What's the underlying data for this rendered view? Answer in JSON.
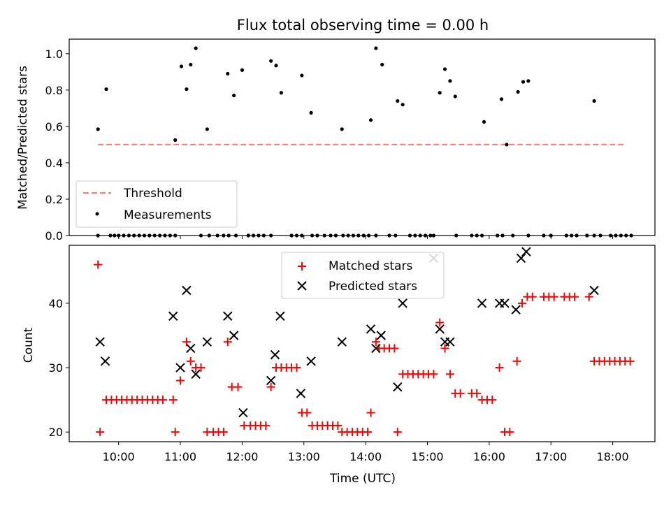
{
  "chart_data": [
    {
      "type": "scatter",
      "title": "Flux total observing time = 0.00 h",
      "xlabel": "",
      "ylabel": "Matched/Predicted stars",
      "ylim": [
        0.0,
        1.08
      ],
      "yticks": [
        "0.0",
        "0.2",
        "0.4",
        "0.6",
        "0.8",
        "1.0"
      ],
      "legend": {
        "placement": "lower-left",
        "entries": [
          "Threshold",
          "Measurements"
        ]
      },
      "series": [
        {
          "name": "Threshold",
          "style": "dashed-line",
          "color": "#ff7777",
          "x": [
            "09:40",
            "18:13"
          ],
          "values": [
            0.5,
            0.5
          ]
        },
        {
          "name": "Measurements",
          "style": "dots",
          "color": "#000000",
          "points": [
            [
              "09:40",
              0.585
            ],
            [
              "09:48",
              0.805
            ],
            [
              "10:55",
              0.525
            ],
            [
              "11:01",
              0.93
            ],
            [
              "11:06",
              0.805
            ],
            [
              "11:10",
              0.94
            ],
            [
              "11:15",
              1.03
            ],
            [
              "11:26",
              0.585
            ],
            [
              "11:46",
              0.89
            ],
            [
              "11:52",
              0.77
            ],
            [
              "12:00",
              0.91
            ],
            [
              "12:28",
              0.96
            ],
            [
              "12:33",
              0.935
            ],
            [
              "12:38",
              0.785
            ],
            [
              "12:58",
              0.88
            ],
            [
              "13:07",
              0.675
            ],
            [
              "13:37",
              0.585
            ],
            [
              "14:05",
              0.635
            ],
            [
              "14:10",
              1.03
            ],
            [
              "14:16",
              0.94
            ],
            [
              "14:31",
              0.74
            ],
            [
              "14:36",
              0.72
            ],
            [
              "15:12",
              0.785
            ],
            [
              "15:17",
              0.915
            ],
            [
              "15:22",
              0.85
            ],
            [
              "15:27",
              0.765
            ],
            [
              "15:55",
              0.625
            ],
            [
              "16:12",
              0.75
            ],
            [
              "16:17",
              0.5
            ],
            [
              "16:28",
              0.79
            ],
            [
              "16:33",
              0.845
            ],
            [
              "16:38",
              0.85
            ],
            [
              "17:42",
              0.74
            ],
            [
              "09:40",
              0.0
            ],
            [
              "09:52",
              0.0
            ],
            [
              "09:56",
              0.0
            ],
            [
              "10:00",
              0.0
            ],
            [
              "10:05",
              0.0
            ],
            [
              "10:10",
              0.0
            ],
            [
              "10:15",
              0.0
            ],
            [
              "10:20",
              0.0
            ],
            [
              "10:25",
              0.0
            ],
            [
              "10:30",
              0.0
            ],
            [
              "10:35",
              0.0
            ],
            [
              "10:40",
              0.0
            ],
            [
              "10:45",
              0.0
            ],
            [
              "10:50",
              0.0
            ],
            [
              "10:55",
              0.0
            ],
            [
              "11:20",
              0.0
            ],
            [
              "11:28",
              0.0
            ],
            [
              "11:36",
              0.0
            ],
            [
              "11:42",
              0.0
            ],
            [
              "11:47",
              0.0
            ],
            [
              "11:54",
              0.0
            ],
            [
              "12:06",
              0.0
            ],
            [
              "12:11",
              0.0
            ],
            [
              "12:16",
              0.0
            ],
            [
              "12:21",
              0.0
            ],
            [
              "12:28",
              0.0
            ],
            [
              "12:48",
              0.0
            ],
            [
              "12:53",
              0.0
            ],
            [
              "12:58",
              0.0
            ],
            [
              "13:08",
              0.0
            ],
            [
              "13:13",
              0.0
            ],
            [
              "13:20",
              0.0
            ],
            [
              "13:26",
              0.0
            ],
            [
              "13:31",
              0.0
            ],
            [
              "13:38",
              0.0
            ],
            [
              "13:43",
              0.0
            ],
            [
              "13:48",
              0.0
            ],
            [
              "13:53",
              0.0
            ],
            [
              "13:58",
              0.0
            ],
            [
              "14:03",
              0.0
            ],
            [
              "14:10",
              0.0
            ],
            [
              "14:23",
              0.0
            ],
            [
              "14:29",
              0.0
            ],
            [
              "14:43",
              0.0
            ],
            [
              "14:48",
              0.0
            ],
            [
              "14:53",
              0.0
            ],
            [
              "14:58",
              0.0
            ],
            [
              "15:03",
              0.0
            ],
            [
              "15:06",
              0.0
            ],
            [
              "15:28",
              0.0
            ],
            [
              "15:43",
              0.0
            ],
            [
              "15:48",
              0.0
            ],
            [
              "15:53",
              0.0
            ],
            [
              "16:08",
              0.0
            ],
            [
              "16:13",
              0.0
            ],
            [
              "16:23",
              0.0
            ],
            [
              "16:38",
              0.0
            ],
            [
              "16:53",
              0.0
            ],
            [
              "17:00",
              0.0
            ],
            [
              "17:15",
              0.0
            ],
            [
              "17:20",
              0.0
            ],
            [
              "17:25",
              0.0
            ],
            [
              "17:35",
              0.0
            ],
            [
              "17:42",
              0.0
            ],
            [
              "17:48",
              0.0
            ],
            [
              "17:58",
              0.0
            ],
            [
              "18:03",
              0.0
            ],
            [
              "18:08",
              0.0
            ],
            [
              "18:13",
              0.0
            ],
            [
              "18:18",
              0.0
            ]
          ]
        }
      ]
    },
    {
      "type": "scatter",
      "title": "",
      "xlabel": "Time (UTC)",
      "ylabel": "Count",
      "ylim": [
        18.5,
        49
      ],
      "yticks": [
        "20",
        "30",
        "40"
      ],
      "xticks": [
        "10:00",
        "11:00",
        "12:00",
        "13:00",
        "14:00",
        "15:00",
        "16:00",
        "17:00",
        "18:00"
      ],
      "xlim": [
        "09:12",
        "18:41"
      ],
      "legend": {
        "placement": "upper-center",
        "entries": [
          "Matched stars",
          "Predicted stars"
        ]
      },
      "series": [
        {
          "name": "Matched stars",
          "marker": "plus",
          "color": "#ff0000",
          "points": [
            [
              "09:40",
              46
            ],
            [
              "09:42",
              20
            ],
            [
              "09:48",
              25
            ],
            [
              "09:53",
              25
            ],
            [
              "09:58",
              25
            ],
            [
              "10:03",
              25
            ],
            [
              "10:08",
              25
            ],
            [
              "10:13",
              25
            ],
            [
              "10:18",
              25
            ],
            [
              "10:23",
              25
            ],
            [
              "10:28",
              25
            ],
            [
              "10:33",
              25
            ],
            [
              "10:38",
              25
            ],
            [
              "10:43",
              25
            ],
            [
              "10:53",
              25
            ],
            [
              "10:55",
              20
            ],
            [
              "11:00",
              28
            ],
            [
              "11:06",
              34
            ],
            [
              "11:10",
              31
            ],
            [
              "11:15",
              30
            ],
            [
              "11:20",
              30
            ],
            [
              "11:26",
              20
            ],
            [
              "11:32",
              20
            ],
            [
              "11:37",
              20
            ],
            [
              "11:42",
              20
            ],
            [
              "11:46",
              34
            ],
            [
              "11:50",
              27
            ],
            [
              "11:56",
              27
            ],
            [
              "12:02",
              21
            ],
            [
              "12:08",
              21
            ],
            [
              "12:13",
              21
            ],
            [
              "12:18",
              21
            ],
            [
              "12:23",
              21
            ],
            [
              "12:28",
              27
            ],
            [
              "12:33",
              30
            ],
            [
              "12:38",
              30
            ],
            [
              "12:43",
              30
            ],
            [
              "12:48",
              30
            ],
            [
              "12:53",
              30
            ],
            [
              "12:58",
              23
            ],
            [
              "13:03",
              23
            ],
            [
              "13:08",
              21
            ],
            [
              "13:13",
              21
            ],
            [
              "13:18",
              21
            ],
            [
              "13:23",
              21
            ],
            [
              "13:28",
              21
            ],
            [
              "13:33",
              21
            ],
            [
              "13:37",
              20
            ],
            [
              "13:42",
              20
            ],
            [
              "13:47",
              20
            ],
            [
              "13:52",
              20
            ],
            [
              "13:57",
              20
            ],
            [
              "14:02",
              20
            ],
            [
              "14:05",
              23
            ],
            [
              "14:10",
              34
            ],
            [
              "14:13",
              33
            ],
            [
              "14:18",
              33
            ],
            [
              "14:23",
              33
            ],
            [
              "14:28",
              33
            ],
            [
              "14:31",
              20
            ],
            [
              "14:36",
              29
            ],
            [
              "14:41",
              29
            ],
            [
              "14:46",
              29
            ],
            [
              "14:51",
              29
            ],
            [
              "14:56",
              29
            ],
            [
              "15:01",
              29
            ],
            [
              "15:06",
              29
            ],
            [
              "15:12",
              37
            ],
            [
              "15:17",
              33
            ],
            [
              "15:22",
              29
            ],
            [
              "15:27",
              26
            ],
            [
              "15:32",
              26
            ],
            [
              "15:43",
              26
            ],
            [
              "15:48",
              26
            ],
            [
              "15:53",
              25
            ],
            [
              "15:58",
              25
            ],
            [
              "16:03",
              25
            ],
            [
              "16:10",
              30
            ],
            [
              "16:15",
              20
            ],
            [
              "16:20",
              20
            ],
            [
              "16:27",
              31
            ],
            [
              "16:32",
              40
            ],
            [
              "16:37",
              41
            ],
            [
              "16:42",
              41
            ],
            [
              "16:53",
              41
            ],
            [
              "16:58",
              41
            ],
            [
              "17:03",
              41
            ],
            [
              "17:13",
              41
            ],
            [
              "17:18",
              41
            ],
            [
              "17:23",
              41
            ],
            [
              "17:37",
              41
            ],
            [
              "17:42",
              31
            ],
            [
              "17:47",
              31
            ],
            [
              "17:52",
              31
            ],
            [
              "17:57",
              31
            ],
            [
              "18:02",
              31
            ],
            [
              "18:07",
              31
            ],
            [
              "18:12",
              31
            ],
            [
              "18:17",
              31
            ]
          ]
        },
        {
          "name": "Predicted stars",
          "marker": "x",
          "color": "#000000",
          "points": [
            [
              "09:42",
              34
            ],
            [
              "09:47",
              31
            ],
            [
              "10:53",
              38
            ],
            [
              "11:00",
              30
            ],
            [
              "11:06",
              42
            ],
            [
              "11:10",
              33
            ],
            [
              "11:15",
              29
            ],
            [
              "11:26",
              34
            ],
            [
              "11:46",
              38
            ],
            [
              "11:52",
              35
            ],
            [
              "12:01",
              23
            ],
            [
              "12:28",
              28
            ],
            [
              "12:32",
              32
            ],
            [
              "12:37",
              38
            ],
            [
              "12:57",
              26
            ],
            [
              "13:07",
              31
            ],
            [
              "13:37",
              34
            ],
            [
              "14:05",
              36
            ],
            [
              "14:10",
              33
            ],
            [
              "14:15",
              35
            ],
            [
              "14:31",
              27
            ],
            [
              "14:36",
              40
            ],
            [
              "15:06",
              47
            ],
            [
              "15:12",
              36
            ],
            [
              "15:17",
              34
            ],
            [
              "15:22",
              34
            ],
            [
              "15:53",
              40
            ],
            [
              "16:10",
              40
            ],
            [
              "16:15",
              40
            ],
            [
              "16:26",
              39
            ],
            [
              "16:31",
              47
            ],
            [
              "16:36",
              48
            ],
            [
              "17:42",
              42
            ]
          ]
        }
      ]
    }
  ]
}
